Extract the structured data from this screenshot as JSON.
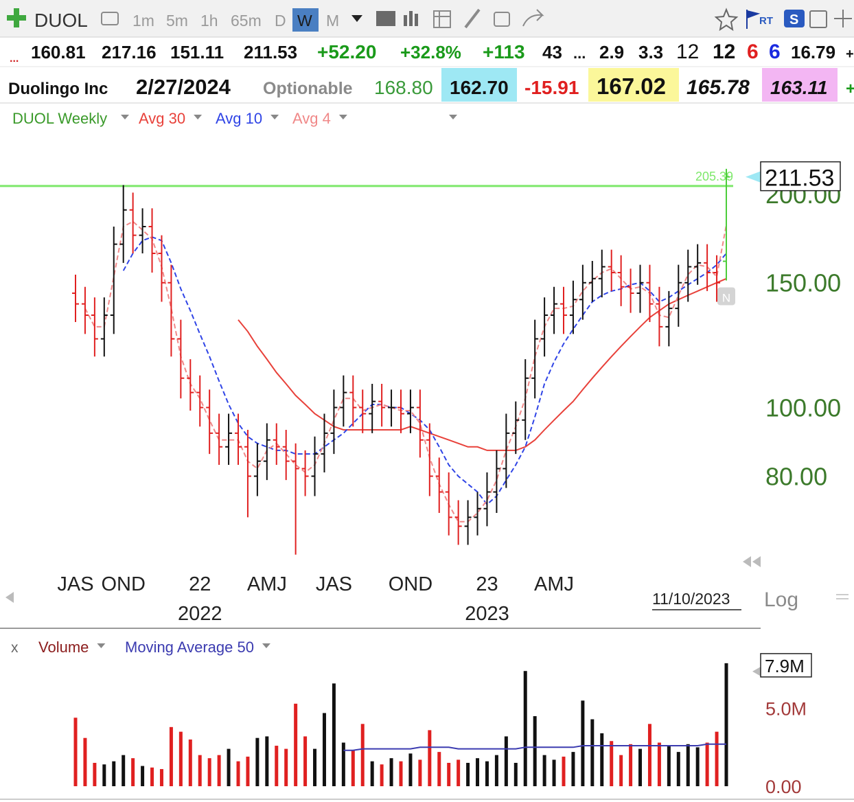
{
  "toolbar": {
    "symbol": "DUOL",
    "intervals": [
      "1m",
      "5m",
      "1h",
      "65m",
      "D",
      "W",
      "M"
    ],
    "selected": "W",
    "rt": "RT",
    "s": "S"
  },
  "quote_row1": [
    {
      "text": "...",
      "color": "#d02020"
    },
    {
      "text": "160.81",
      "color": "#111111"
    },
    {
      "text": "217.16",
      "color": "#111111"
    },
    {
      "text": "151.11",
      "color": "#111111"
    },
    {
      "text": "211.53",
      "color": "#111111"
    },
    {
      "text": "+52.20",
      "color": "#1a9a1a"
    },
    {
      "text": "+32.8%",
      "color": "#1a9a1a"
    },
    {
      "text": "+113",
      "color": "#1a9a1a"
    },
    {
      "text": "43",
      "color": "#111111"
    },
    {
      "text": "...",
      "color": "#111111"
    },
    {
      "text": "2.9",
      "color": "#111111"
    },
    {
      "text": "3.3",
      "color": "#111111"
    },
    {
      "text": "12",
      "color": "#111111"
    },
    {
      "text": "12",
      "color": "#111111"
    },
    {
      "text": "6",
      "color": "#e02020"
    },
    {
      "text": "6",
      "color": "#1a2ae0"
    },
    {
      "text": "16.79",
      "color": "#111111"
    },
    {
      "text": "+",
      "color": "#111111"
    }
  ],
  "quote_row2": [
    {
      "text": "Duolingo Inc",
      "color": "#111111",
      "bg": null
    },
    {
      "text": "2/27/2024",
      "color": "#111111",
      "bg": null
    },
    {
      "text": "Optionable",
      "color": "#8a8a8a",
      "bg": null
    },
    {
      "text": "168.80",
      "color": "#3a9a3a",
      "bg": null
    },
    {
      "text": "162.70",
      "color": "#111111",
      "bg": "#9ee8f4"
    },
    {
      "text": "-15.91",
      "color": "#e02020",
      "bg": null
    },
    {
      "text": "167.02",
      "color": "#111111",
      "bg": "#fbf79a"
    },
    {
      "text": "165.78",
      "color": "#111111",
      "bg": null
    },
    {
      "text": "163.11",
      "color": "#111111",
      "bg": "#f3b6f3"
    },
    {
      "text": "+",
      "color": "#1a9a1a",
      "bg": null
    }
  ],
  "chart_data": [
    {
      "type": "ohlc",
      "name": "DUOL Weekly",
      "color": "#3a9a2a",
      "up_color": "#111111",
      "down_color": "#e02020",
      "breakout_color": "#4ccd3a",
      "log_scale": true,
      "ylim": [
        59,
        246
      ],
      "yticks": [
        {
          "value": 80,
          "label": "80.00"
        },
        {
          "value": 100,
          "label": "100.00"
        },
        {
          "value": 150,
          "label": "150.00"
        },
        {
          "value": 200,
          "label": "200.00"
        }
      ],
      "categories": [
        "JAS",
        null,
        null,
        null,
        null,
        "OND",
        null,
        null,
        null,
        null,
        null,
        null,
        null,
        "22",
        null,
        null,
        null,
        null,
        null,
        null,
        "AMJ",
        null,
        null,
        null,
        null,
        null,
        null,
        "JAS",
        null,
        null,
        null,
        null,
        null,
        null,
        null,
        "OND",
        null,
        null,
        null,
        null,
        null,
        null,
        null,
        "23",
        null,
        null,
        null,
        null,
        null,
        null,
        "AMJ",
        null,
        null,
        null,
        null,
        null,
        null,
        null,
        null,
        null,
        null,
        null,
        null,
        null,
        null,
        null,
        null,
        null,
        null
      ],
      "categories_year": [
        null,
        null,
        null,
        null,
        null,
        null,
        null,
        null,
        null,
        null,
        null,
        null,
        null,
        "2022",
        null,
        null,
        null,
        null,
        null,
        null,
        null,
        null,
        null,
        null,
        null,
        null,
        null,
        null,
        null,
        null,
        null,
        null,
        null,
        null,
        null,
        null,
        null,
        null,
        null,
        null,
        null,
        null,
        null,
        "2023",
        null,
        null,
        null,
        null,
        null,
        null,
        null,
        null,
        null,
        null,
        null,
        null,
        null,
        null,
        null,
        null,
        null,
        null,
        null,
        null,
        null,
        null,
        null,
        null,
        null
      ],
      "open": [
        145,
        140,
        135,
        125,
        135,
        170,
        190,
        175,
        180,
        165,
        150,
        125,
        110,
        105,
        100,
        92,
        88,
        92,
        88,
        80,
        84,
        90,
        88,
        84,
        82,
        80,
        86,
        92,
        100,
        105,
        100,
        98,
        102,
        100,
        100,
        98,
        100,
        90,
        80,
        76,
        70,
        68,
        70,
        72,
        76,
        82,
        92,
        96,
        110,
        125,
        135,
        140,
        135,
        142,
        150,
        152,
        158,
        155,
        148,
        145,
        150,
        140,
        130,
        138,
        150,
        158,
        160,
        155,
        160.81
      ],
      "high": [
        154,
        148,
        143,
        143,
        180,
        206,
        201,
        191,
        191,
        175,
        159,
        133,
        117,
        111,
        106,
        98,
        98,
        98,
        93,
        89,
        95,
        95,
        93,
        89,
        87,
        91,
        98,
        106,
        111,
        111,
        106,
        108,
        108,
        106,
        106,
        106,
        106,
        95,
        85,
        81,
        74,
        74,
        76,
        81,
        87,
        98,
        102,
        117,
        133,
        143,
        148,
        148,
        151,
        159,
        161,
        167,
        167,
        164,
        157,
        159,
        159,
        148,
        146,
        159,
        167,
        170,
        170,
        164,
        217.16
      ],
      "low": [
        132,
        127,
        118,
        118,
        127,
        160,
        165,
        165,
        155,
        141,
        118,
        103,
        99,
        94,
        86,
        83,
        83,
        83,
        70,
        75,
        79,
        83,
        79,
        62,
        75,
        75,
        81,
        86,
        94,
        94,
        92,
        92,
        94,
        94,
        92,
        92,
        85,
        75,
        71,
        66,
        64,
        64,
        66,
        68,
        71,
        77,
        86,
        90,
        103,
        118,
        127,
        127,
        127,
        133,
        141,
        143,
        146,
        139,
        136,
        136,
        132,
        122,
        122,
        130,
        141,
        149,
        146,
        141,
        151.11
      ],
      "close": [
        140,
        135,
        125,
        135,
        170,
        190,
        175,
        180,
        165,
        150,
        125,
        110,
        105,
        100,
        92,
        88,
        92,
        88,
        80,
        84,
        90,
        88,
        84,
        82,
        80,
        86,
        92,
        100,
        105,
        100,
        98,
        102,
        100,
        100,
        98,
        100,
        90,
        80,
        76,
        70,
        68,
        70,
        72,
        76,
        82,
        92,
        96,
        110,
        125,
        135,
        140,
        135,
        142,
        150,
        152,
        158,
        155,
        148,
        145,
        150,
        140,
        130,
        138,
        150,
        158,
        160,
        155,
        150,
        211.53
      ],
      "series": [
        {
          "name": "Avg 30",
          "color": "#e8413a",
          "dash": false,
          "values": [
            null,
            null,
            null,
            null,
            null,
            null,
            null,
            null,
            null,
            null,
            null,
            null,
            null,
            null,
            null,
            null,
            null,
            133,
            128,
            122,
            117,
            112,
            108,
            104,
            101,
            98,
            96,
            94,
            93,
            93,
            93,
            93,
            93,
            93,
            93,
            94,
            93,
            92,
            91,
            90,
            89,
            88,
            88,
            87,
            87,
            87,
            87,
            88,
            90,
            93,
            96,
            99,
            102,
            106,
            110,
            114,
            118,
            122,
            126,
            130,
            134,
            137,
            140,
            142,
            144,
            146,
            148,
            150,
            152
          ]
        },
        {
          "name": "Avg 10",
          "color": "#2f44e6",
          "dash": true,
          "values": [
            null,
            null,
            null,
            null,
            null,
            156,
            165,
            172,
            174,
            172,
            160,
            147,
            137,
            127,
            118,
            109,
            101,
            95,
            91,
            89,
            88,
            87,
            87,
            86,
            86,
            86,
            88,
            90,
            92,
            95,
            98,
            101,
            101,
            100,
            100,
            98,
            96,
            93,
            88,
            83,
            80,
            78,
            76,
            73,
            75,
            79,
            83,
            88,
            97,
            108,
            116,
            123,
            129,
            135,
            141,
            144,
            146,
            147,
            149,
            150,
            146,
            141,
            143,
            146,
            149,
            152,
            155,
            159,
            165
          ]
        },
        {
          "name": "Avg 4",
          "color": "#f08888",
          "dash": true,
          "values": [
            null,
            138,
            130,
            130,
            153,
            180,
            183,
            178,
            173,
            158,
            138,
            118,
            108,
            103,
            96,
            90,
            90,
            90,
            84,
            82,
            87,
            89,
            86,
            83,
            81,
            83,
            89,
            96,
            103,
            103,
            99,
            100,
            101,
            100,
            99,
            99,
            95,
            85,
            78,
            73,
            69,
            69,
            71,
            74,
            79,
            87,
            94,
            103,
            118,
            130,
            138,
            138,
            139,
            146,
            151,
            155,
            157,
            152,
            147,
            148,
            145,
            135,
            134,
            144,
            154,
            159,
            158,
            153,
            181
          ]
        }
      ],
      "hline": {
        "value": 205.39,
        "label": "205.39",
        "color": "#7de86a"
      },
      "marker": "N",
      "date_label": "11/10/2023",
      "scale_label": "Log"
    },
    {
      "type": "bar",
      "ylim": [
        0,
        8.6
      ],
      "yticks": [
        {
          "value": 0,
          "label": "0.00"
        },
        {
          "value": 5,
          "label": "5.0M"
        }
      ],
      "close_label": "x",
      "series": [
        {
          "name": "Volume",
          "color": "#8b1c1c",
          "values": [
            4.4,
            3.1,
            1.5,
            1.4,
            1.6,
            2.0,
            1.8,
            1.3,
            1.2,
            1.1,
            3.8,
            3.5,
            3.0,
            2.0,
            1.8,
            2.0,
            2.4,
            1.6,
            1.9,
            3.1,
            3.2,
            2.6,
            2.4,
            5.3,
            3.2,
            2.4,
            4.7,
            6.6,
            2.8,
            2.3,
            4.0,
            1.6,
            1.4,
            1.8,
            1.6,
            2.1,
            1.7,
            3.6,
            2.2,
            1.5,
            1.7,
            1.5,
            1.8,
            1.6,
            2.0,
            3.2,
            1.5,
            7.4,
            4.5,
            2.0,
            1.7,
            1.9,
            2.2,
            5.5,
            4.3,
            3.4,
            2.9,
            2.0,
            2.7,
            2.4,
            4.0,
            2.8,
            2.6,
            2.2,
            2.7,
            2.5,
            2.8,
            3.5,
            7.9
          ],
          "value_labels": [
            null,
            null,
            null,
            null,
            null,
            null,
            null,
            null,
            null,
            null,
            null,
            null,
            null,
            null,
            null,
            null,
            null,
            null,
            null,
            null,
            null,
            null,
            null,
            null,
            null,
            null,
            null,
            null,
            null,
            null,
            null,
            null,
            null,
            null,
            null,
            null,
            null,
            null,
            null,
            null,
            null,
            null,
            null,
            null,
            null,
            null,
            null,
            null,
            null,
            null,
            null,
            null,
            null,
            null,
            null,
            null,
            null,
            null,
            null,
            null,
            null,
            null,
            null,
            null,
            null,
            null,
            null,
            null,
            "7.9M"
          ]
        },
        {
          "name": "Moving Average 50",
          "color": "#3b3bb0",
          "type": "line",
          "values": [
            null,
            null,
            null,
            null,
            null,
            null,
            null,
            null,
            null,
            null,
            null,
            null,
            null,
            null,
            null,
            null,
            null,
            null,
            null,
            null,
            null,
            null,
            null,
            null,
            null,
            null,
            null,
            null,
            2.3,
            2.3,
            2.4,
            2.4,
            2.4,
            2.4,
            2.4,
            2.4,
            2.5,
            2.5,
            2.5,
            2.5,
            2.4,
            2.4,
            2.4,
            2.4,
            2.4,
            2.4,
            2.4,
            2.5,
            2.5,
            2.5,
            2.5,
            2.5,
            2.5,
            2.6,
            2.6,
            2.6,
            2.6,
            2.6,
            2.6,
            2.6,
            2.6,
            2.6,
            2.6,
            2.6,
            2.6,
            2.6,
            2.7,
            2.7,
            2.7
          ]
        }
      ]
    }
  ]
}
